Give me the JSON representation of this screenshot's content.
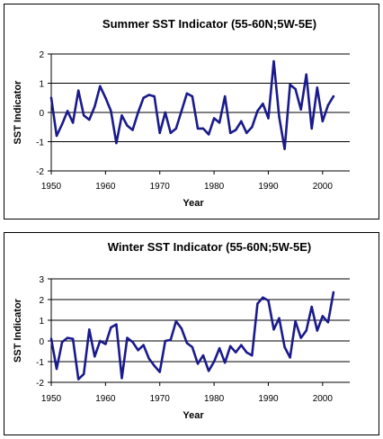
{
  "chart_data": [
    {
      "type": "line",
      "title": "Summer SST Indicator (55-60N;5W-5E)",
      "xlabel": "Year",
      "ylabel": "SST Indicator",
      "xlim": [
        1950,
        2005
      ],
      "ylim": [
        -2,
        2
      ],
      "xticks": [
        "1950",
        "1960",
        "1970",
        "1980",
        "1990",
        "2000"
      ],
      "yticks": [
        "-2",
        "-1",
        "0",
        "1",
        "2"
      ],
      "grid": "horizontal",
      "line_color": "#1a1a8c",
      "x": [
        1950,
        1951,
        1952,
        1953,
        1954,
        1955,
        1956,
        1957,
        1958,
        1959,
        1960,
        1961,
        1962,
        1963,
        1964,
        1965,
        1966,
        1967,
        1968,
        1969,
        1970,
        1971,
        1972,
        1973,
        1974,
        1975,
        1976,
        1977,
        1978,
        1979,
        1980,
        1981,
        1982,
        1983,
        1984,
        1985,
        1986,
        1987,
        1988,
        1989,
        1990,
        1991,
        1992,
        1993,
        1994,
        1995,
        1996,
        1997,
        1998,
        1999,
        2000,
        2001,
        2002
      ],
      "values": [
        0.5,
        -0.8,
        -0.4,
        0.05,
        -0.35,
        0.75,
        -0.1,
        -0.25,
        0.2,
        0.9,
        0.5,
        0.05,
        -1.05,
        -0.1,
        -0.45,
        -0.6,
        0.0,
        0.5,
        0.6,
        0.55,
        -0.7,
        0.0,
        -0.7,
        -0.55,
        0.05,
        0.65,
        0.55,
        -0.55,
        -0.55,
        -0.75,
        -0.2,
        -0.35,
        0.55,
        -0.7,
        -0.6,
        -0.3,
        -0.7,
        -0.5,
        0.05,
        0.3,
        -0.2,
        1.75,
        -0.15,
        -1.25,
        0.95,
        0.8,
        0.1,
        1.3,
        -0.55,
        0.85,
        -0.3,
        0.25,
        0.55
      ]
    },
    {
      "type": "line",
      "title": "Winter SST Indicator (55-60N;5W-5E)",
      "xlabel": "Year",
      "ylabel": "SST Indicator",
      "xlim": [
        1950,
        2005
      ],
      "ylim": [
        -2,
        3
      ],
      "xticks": [
        "1950",
        "1960",
        "1970",
        "1980",
        "1990",
        "2000"
      ],
      "yticks": [
        "-2",
        "-1",
        "0",
        "1",
        "2",
        "3"
      ],
      "grid": "horizontal",
      "line_color": "#1a1a8c",
      "x": [
        1950,
        1951,
        1952,
        1953,
        1954,
        1955,
        1956,
        1957,
        1958,
        1959,
        1960,
        1961,
        1962,
        1963,
        1964,
        1965,
        1966,
        1967,
        1968,
        1969,
        1970,
        1971,
        1972,
        1973,
        1974,
        1975,
        1976,
        1977,
        1978,
        1979,
        1980,
        1981,
        1982,
        1983,
        1984,
        1985,
        1986,
        1987,
        1988,
        1989,
        1990,
        1991,
        1992,
        1993,
        1994,
        1995,
        1996,
        1997,
        1998,
        1999,
        2000,
        2001,
        2002
      ],
      "values": [
        0.1,
        -1.35,
        -0.05,
        0.15,
        0.1,
        -1.85,
        -1.6,
        0.55,
        -0.75,
        0.0,
        -0.15,
        0.65,
        0.8,
        -1.8,
        0.15,
        -0.05,
        -0.45,
        -0.2,
        -0.85,
        -1.2,
        -1.5,
        0.0,
        0.05,
        0.95,
        0.6,
        -0.1,
        -0.3,
        -1.1,
        -0.7,
        -1.45,
        -1.0,
        -0.35,
        -1.05,
        -0.25,
        -0.55,
        -0.2,
        -0.55,
        -0.7,
        1.8,
        2.1,
        1.95,
        0.55,
        1.1,
        -0.3,
        -0.8,
        0.95,
        0.15,
        0.5,
        1.65,
        0.5,
        1.2,
        0.9,
        2.35
      ]
    }
  ]
}
